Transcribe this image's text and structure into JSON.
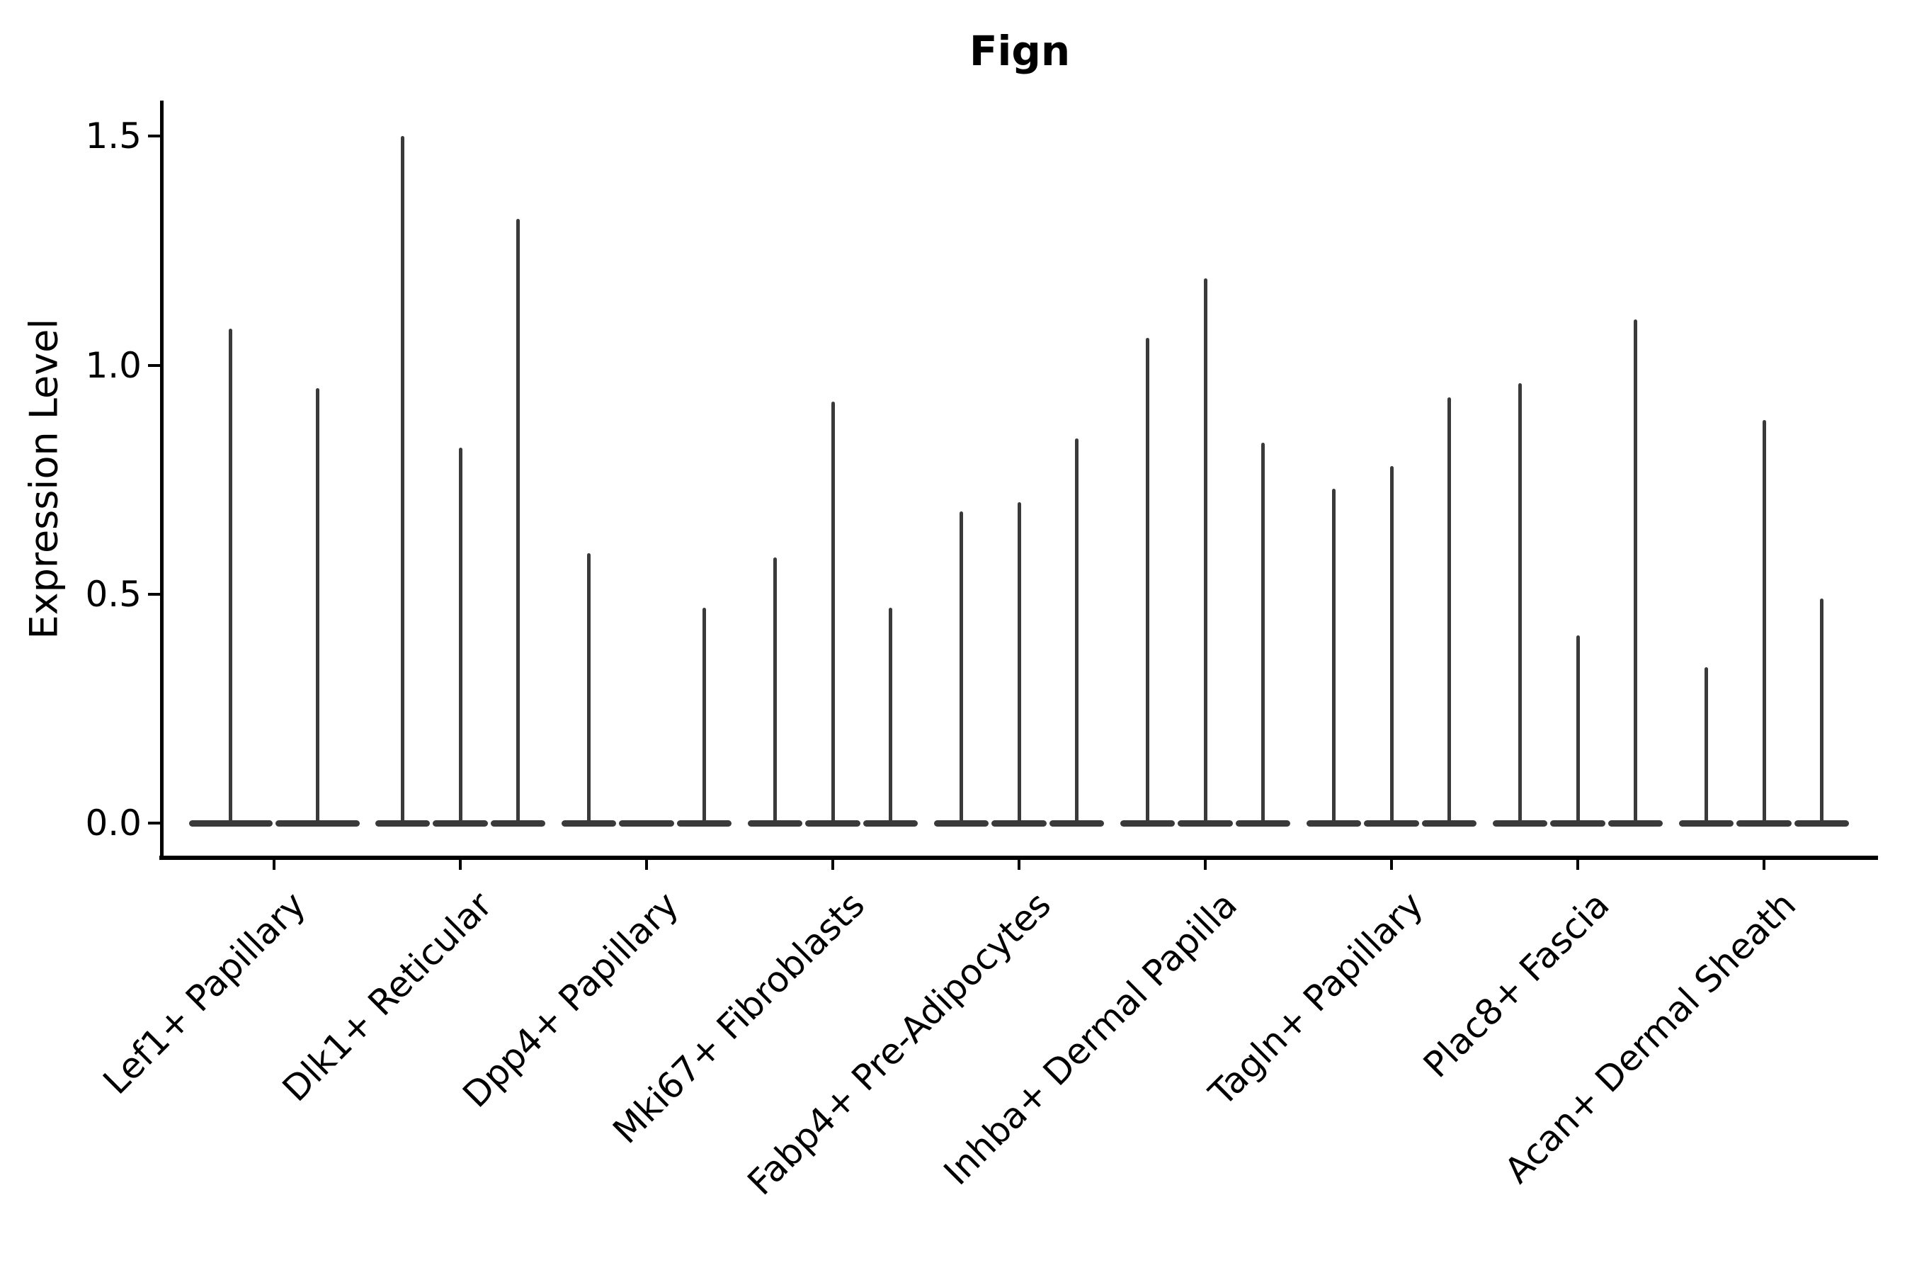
{
  "title": "Fign",
  "y_axis": {
    "label": "Expression Level",
    "tick_labels": [
      "0.0",
      "0.5",
      "1.0",
      "1.5"
    ],
    "tick_values": [
      0.0,
      0.5,
      1.0,
      1.5
    ]
  },
  "chart_data": {
    "type": "violin",
    "title": "Fign",
    "xlabel": "",
    "ylabel": "Expression Level",
    "ylim": [
      -0.08,
      1.58
    ],
    "yticks": [
      0.0,
      0.5,
      1.0,
      1.5
    ],
    "grid": false,
    "legend_position": "none",
    "shape_note": "each violin is collapsed: wide flat density blob at 0 with a thin spike reaching its max expression value; a max of 0 means the violin is flat at the baseline",
    "groups": [
      {
        "label": "Lef1+ Papillary",
        "violin_max_values": [
          1.08,
          0.95
        ]
      },
      {
        "label": "Dlk1+ Reticular",
        "violin_max_values": [
          1.5,
          0.82,
          1.32
        ]
      },
      {
        "label": "Dpp4+ Papillary",
        "violin_max_values": [
          0.59,
          0.0,
          0.47
        ]
      },
      {
        "label": "Mki67+ Fibroblasts",
        "violin_max_values": [
          0.58,
          0.92,
          0.47
        ]
      },
      {
        "label": "Fabp4+ Pre-Adipocytes",
        "violin_max_values": [
          0.68,
          0.7,
          0.84
        ]
      },
      {
        "label": "Inhba+ Dermal Papilla",
        "violin_max_values": [
          1.06,
          1.19,
          0.83
        ]
      },
      {
        "label": "Tagln+ Papillary",
        "violin_max_values": [
          0.73,
          0.78,
          0.93
        ]
      },
      {
        "label": "Plac8+ Fascia",
        "violin_max_values": [
          0.96,
          0.41,
          1.1
        ]
      },
      {
        "label": "Acan+ Dermal Sheath",
        "violin_max_values": [
          0.34,
          0.88,
          0.49
        ]
      }
    ]
  },
  "colors": {
    "violin": "#3a3a3a",
    "axis": "#000000",
    "background": "#ffffff"
  }
}
